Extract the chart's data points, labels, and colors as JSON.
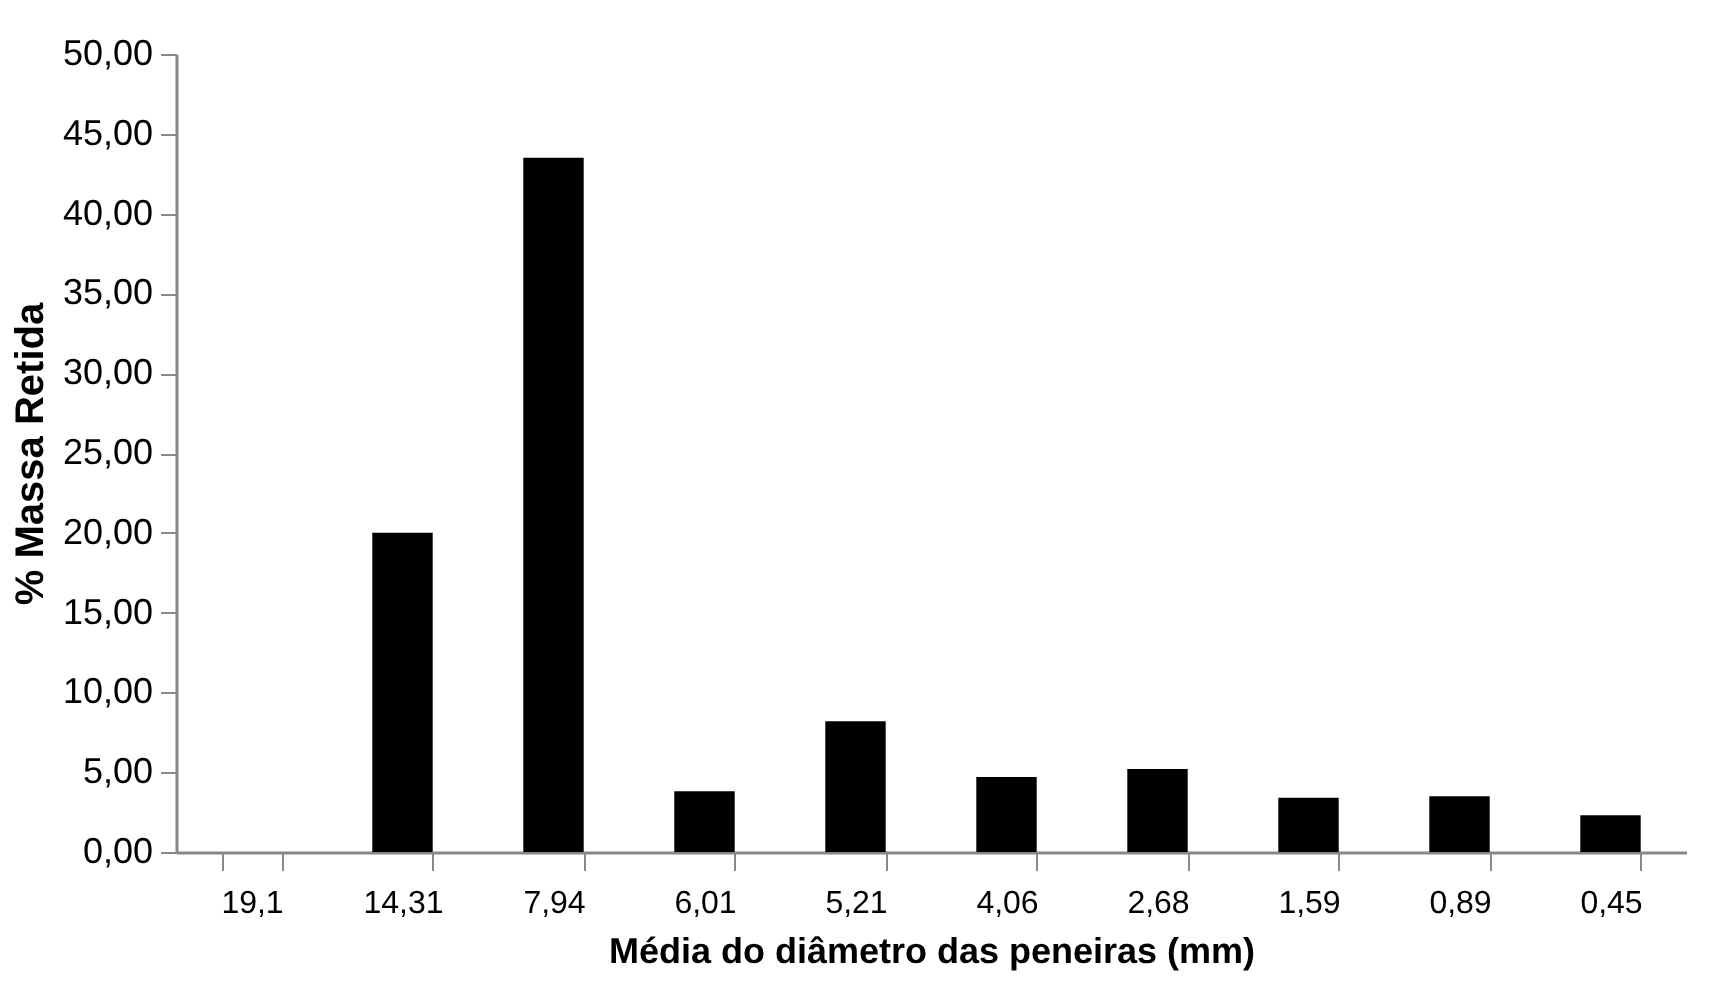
{
  "chart_data": {
    "type": "bar",
    "xlabel": "Média do diâmetro das peneiras (mm)",
    "ylabel": "% Massa Retida",
    "categories": [
      "19,1",
      "14,31",
      "7,94",
      "6,01",
      "5,21",
      "4,06",
      "2,68",
      "1,59",
      "0,89",
      "0,45"
    ],
    "values": [
      0,
      20.0,
      43.5,
      3.8,
      8.2,
      4.7,
      5.2,
      3.4,
      3.5,
      2.3
    ],
    "color": "#000000",
    "ylim": [
      0,
      50
    ],
    "yticks": [
      {
        "value": 0,
        "label": "0,00"
      },
      {
        "value": 5,
        "label": "5,00"
      },
      {
        "value": 10,
        "label": "10,00"
      },
      {
        "value": 15,
        "label": "15,00"
      },
      {
        "value": 20,
        "label": "20,00"
      },
      {
        "value": 25,
        "label": "25,00"
      },
      {
        "value": 30,
        "label": "30,00"
      },
      {
        "value": 35,
        "label": "35,00"
      },
      {
        "value": 40,
        "label": "40,00"
      },
      {
        "value": 45,
        "label": "45,00"
      },
      {
        "value": 50,
        "label": "50,00"
      }
    ],
    "grid": false
  }
}
